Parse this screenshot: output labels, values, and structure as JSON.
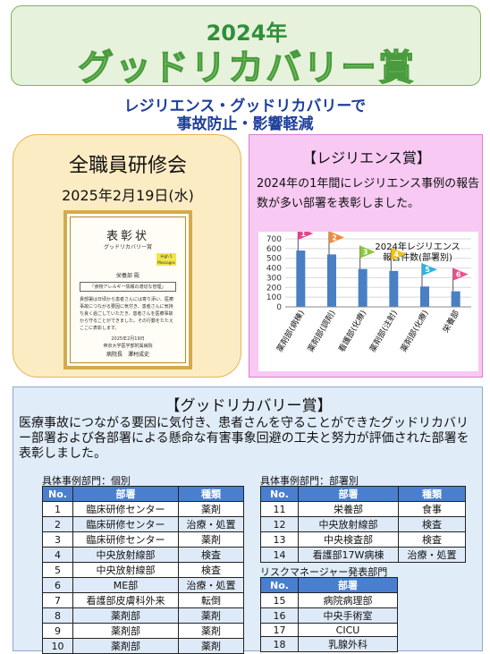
{
  "header": {
    "year": "2024年",
    "title": "グッドリカバリー賞"
  },
  "subtitle": {
    "line1": "レジリエンス・グッドリカバリーで",
    "line2": "事故防止・影響軽減"
  },
  "training": {
    "title": "全職員研修会",
    "date": "2025年2月19日(水)",
    "certificate": {
      "title": "表彰状",
      "subtitle": "グッドリカバリー賞",
      "stamp": "High 5 Messages",
      "recipient": "栄養部 殿",
      "topic": "「食物アレルギー情報の適切な管理」",
      "body": "貴部署は日頃から患者さんには寄り添い、医療事故につながる要因に気付き、患者さんに気持ち良く過ごしていただき、患者さんを医療事故から守ることができました。その行動をたたえここに表彰します。",
      "date": "2025年2月19日",
      "org": "帝京大学医学部附属病院",
      "signer": "病院長　澤村成史"
    }
  },
  "resilience": {
    "title": "【レジリエンス賞】",
    "description": "2024年の1年間にレジリエンス事例の報告数が多い部署を表彰しました。"
  },
  "chart_data": {
    "type": "bar",
    "title": "2024年レジリエンス報告件数(部署別)",
    "categories": [
      "薬剤部(病棟)",
      "薬剤部(調剤)",
      "看護部(化療)",
      "薬剤部(注射)",
      "薬剤部(化療)",
      "栄養部"
    ],
    "values": [
      580,
      540,
      390,
      370,
      210,
      160
    ],
    "ranks": [
      "1",
      "2",
      "3",
      "4",
      "5",
      "6"
    ],
    "flag_colors": [
      "#e8448c",
      "#f08a3a",
      "#8cc63e",
      "#f2c21b",
      "#2fb3e0",
      "#ec4f8f"
    ],
    "bar_color": "#4a7fc4",
    "yticks": [
      "0",
      "100",
      "200",
      "300",
      "400",
      "500",
      "600",
      "700"
    ],
    "ylim": [
      0,
      700
    ]
  },
  "goodrecovery": {
    "title": "【グッドリカバリー賞】",
    "description": "医療事故につながる要因に気付き、患者さんを守ることができたグッドリカバリー部署および各部署による懸命な有害事象回避の工夫と努力が評価された部署を表彰しました。",
    "headers": {
      "no": "No.",
      "dept": "部署",
      "type": "種類"
    },
    "individual": {
      "label": "具体事例部門：個別",
      "rows": [
        {
          "no": "1",
          "dept": "臨床研修センター",
          "type": "薬剤"
        },
        {
          "no": "2",
          "dept": "臨床研修センター",
          "type": "治療・処置"
        },
        {
          "no": "3",
          "dept": "臨床研修センター",
          "type": "薬剤"
        },
        {
          "no": "4",
          "dept": "中央放射線部",
          "type": "検査"
        },
        {
          "no": "5",
          "dept": "中央放射線部",
          "type": "検査"
        },
        {
          "no": "6",
          "dept": "ME部",
          "type": "治療・処置"
        },
        {
          "no": "7",
          "dept": "看護部皮膚科外来",
          "type": "転倒"
        },
        {
          "no": "8",
          "dept": "薬剤部",
          "type": "薬剤"
        },
        {
          "no": "9",
          "dept": "薬剤部",
          "type": "薬剤"
        },
        {
          "no": "10",
          "dept": "薬剤部",
          "type": "薬剤"
        }
      ]
    },
    "department": {
      "label": "具体事例部門：部署別",
      "rows": [
        {
          "no": "11",
          "dept": "栄養部",
          "type": "食事"
        },
        {
          "no": "12",
          "dept": "中央放射線部",
          "type": "検査"
        },
        {
          "no": "13",
          "dept": "中央検査部",
          "type": "検査"
        },
        {
          "no": "14",
          "dept": "看護部17W病棟",
          "type": "治療・処置"
        }
      ]
    },
    "riskmanager": {
      "label": "リスクマネージャー発表部門",
      "rows": [
        {
          "no": "15",
          "dept": "病院病理部"
        },
        {
          "no": "16",
          "dept": "中央手術室"
        },
        {
          "no": "17",
          "dept": "CICU"
        },
        {
          "no": "18",
          "dept": "乳腺外科"
        }
      ]
    }
  }
}
